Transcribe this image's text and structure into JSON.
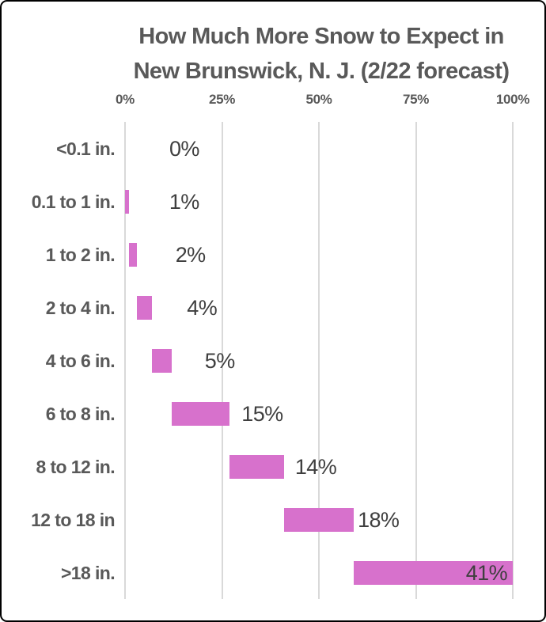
{
  "chart_data": {
    "type": "bar",
    "subtype": "horizontal-waterfall",
    "title_line1": "How Much More Snow to Expect in",
    "title_line2": "New Brunswick, N. J. (2/22 forecast)",
    "categories": [
      "<0.1 in.",
      "0.1 to 1 in.",
      "1 to 2 in.",
      "2 to 4 in.",
      "4 to 6 in.",
      "6 to 8 in.",
      "8 to 12 in.",
      "12 to 18 in",
      ">18 in."
    ],
    "values": [
      0,
      1,
      2,
      4,
      5,
      15,
      14,
      18,
      41
    ],
    "bar_starts": [
      0,
      0,
      1,
      3,
      7,
      12,
      27,
      41,
      59
    ],
    "value_labels": [
      "0%",
      "1%",
      "2%",
      "4%",
      "5%",
      "15%",
      "14%",
      "18%",
      "41%"
    ],
    "x_ticks": [
      "0%",
      "25%",
      "50%",
      "75%",
      "100%"
    ],
    "x_tick_values": [
      0,
      25,
      50,
      75,
      100
    ],
    "xlim": [
      0,
      100
    ],
    "grid": "vertical-only",
    "legend": "none",
    "colors": {
      "bar": "#D771CC",
      "grid": "#D9D9D9",
      "title": "#595959",
      "category_label": "#595959",
      "tick_label": "#595959",
      "value_label": "#3F3F3F",
      "frame_border": "#000000",
      "background": "#FFFFFF"
    }
  }
}
